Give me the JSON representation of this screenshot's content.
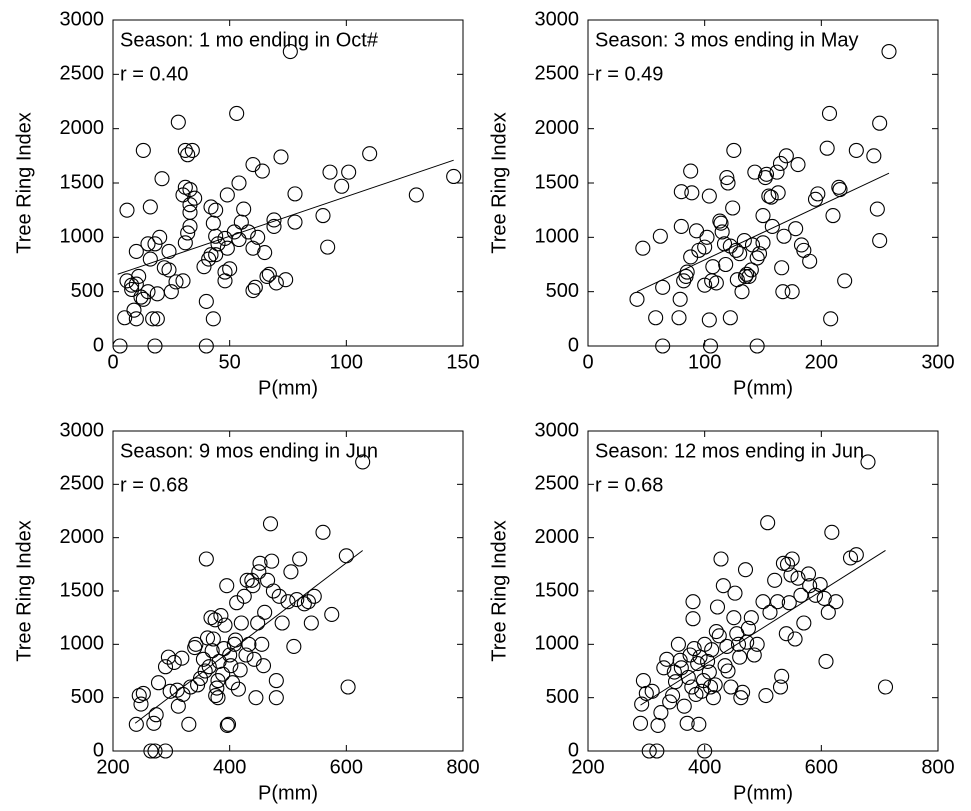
{
  "chart_data": [
    {
      "type": "scatter",
      "color": "#000000",
      "annotations": [
        "Season: 1 mo ending in Oct#",
        "r = 0.40"
      ],
      "xlabel": "P(mm)",
      "ylabel": "Tree Ring Index",
      "xlim": [
        0,
        150
      ],
      "ylim": [
        0,
        3000
      ],
      "xticks": [
        0,
        50,
        100,
        150
      ],
      "yticks": [
        0,
        500,
        1000,
        1500,
        2000,
        2500,
        3000
      ],
      "x": [
        3,
        18,
        40,
        5,
        10,
        17,
        19,
        43,
        9,
        13,
        12,
        15,
        8,
        8,
        10,
        6,
        11,
        19,
        25,
        27,
        30,
        22,
        24,
        16,
        10,
        18,
        15,
        20,
        24,
        31,
        32,
        33,
        33,
        33,
        35,
        30,
        33,
        31,
        31,
        32,
        34,
        28,
        13,
        6,
        16,
        21,
        39,
        41,
        42,
        44,
        44,
        43,
        45,
        44,
        42,
        48,
        48,
        50,
        49,
        49,
        48,
        40,
        52,
        54,
        55,
        54,
        56,
        58,
        60,
        60,
        61,
        62,
        60,
        64,
        65,
        66,
        67,
        69,
        69,
        70,
        72,
        74,
        78,
        78,
        92,
        90,
        93,
        98,
        101,
        110,
        130,
        146,
        76,
        53
      ],
      "values": [
        0,
        0,
        0,
        260,
        250,
        250,
        250,
        250,
        330,
        430,
        450,
        500,
        520,
        560,
        570,
        600,
        640,
        480,
        500,
        590,
        600,
        720,
        700,
        800,
        870,
        940,
        940,
        1000,
        870,
        950,
        1040,
        1100,
        1230,
        1300,
        1360,
        1390,
        1440,
        1460,
        1800,
        1760,
        1800,
        2060,
        1800,
        1250,
        1280,
        1540,
        730,
        800,
        840,
        840,
        1010,
        1130,
        940,
        1250,
        1280,
        600,
        680,
        710,
        900,
        1390,
        990,
        410,
        1050,
        980,
        1140,
        1500,
        1260,
        1050,
        900,
        510,
        540,
        1000,
        1670,
        1610,
        860,
        640,
        660,
        1100,
        1160,
        580,
        1740,
        610,
        1140,
        1400,
        910,
        1200,
        1600,
        1470,
        1600,
        1770,
        1390,
        1560,
        2710,
        2140
      ],
      "fit": {
        "x": [
          2,
          146
        ],
        "y": [
          660,
          1710
        ]
      }
    },
    {
      "type": "scatter",
      "color": "#000000",
      "annotations": [
        "Season: 3 mos ending in May",
        "r = 0.49"
      ],
      "xlabel": "P(mm)",
      "ylabel": "Tree Ring Index",
      "xlim": [
        0,
        300
      ],
      "ylim": [
        0,
        3000
      ],
      "xticks": [
        0,
        100,
        200,
        300
      ],
      "yticks": [
        0,
        500,
        1000,
        1500,
        2000,
        2500,
        3000
      ],
      "x": [
        42,
        47,
        58,
        62,
        64,
        64,
        105,
        145,
        78,
        79,
        82,
        84,
        85,
        88,
        80,
        80,
        89,
        88,
        93,
        95,
        100,
        100,
        102,
        104,
        106,
        104,
        107,
        110,
        113,
        114,
        115,
        117,
        118,
        119,
        120,
        122,
        124,
        125,
        127,
        128,
        130,
        132,
        134,
        135,
        136,
        138,
        140,
        141,
        143,
        145,
        147,
        150,
        150,
        152,
        153,
        155,
        157,
        158,
        162,
        163,
        165,
        166,
        167,
        168,
        170,
        175,
        178,
        180,
        183,
        185,
        190,
        195,
        197,
        205,
        207,
        208,
        210,
        215,
        216,
        220,
        230,
        245,
        248,
        250,
        250,
        258,
        122
      ],
      "values": [
        430,
        900,
        260,
        1010,
        540,
        0,
        0,
        0,
        260,
        430,
        600,
        640,
        680,
        820,
        1100,
        1420,
        1410,
        1610,
        1060,
        880,
        560,
        910,
        1000,
        1380,
        600,
        240,
        730,
        580,
        1150,
        1130,
        1050,
        940,
        750,
        1550,
        1500,
        920,
        1270,
        1800,
        880,
        610,
        850,
        500,
        970,
        640,
        660,
        640,
        700,
        930,
        1600,
        810,
        850,
        1200,
        950,
        1550,
        1580,
        1380,
        1370,
        1100,
        1600,
        1410,
        1680,
        720,
        500,
        1010,
        1750,
        500,
        1080,
        1670,
        930,
        880,
        780,
        1350,
        1400,
        1820,
        2140,
        250,
        1200,
        1460,
        1440,
        600,
        1800,
        1750,
        1260,
        970,
        2050,
        2710,
        260
      ],
      "fit": {
        "x": [
          42,
          258
        ],
        "y": [
          500,
          1590
        ]
      }
    },
    {
      "type": "scatter",
      "color": "#000000",
      "annotations": [
        "Season: 9 mos ending in Jun",
        "r = 0.68"
      ],
      "xlabel": "P(mm)",
      "ylabel": "Tree Ring Index",
      "xlim": [
        200,
        800
      ],
      "ylim": [
        0,
        3000
      ],
      "xticks": [
        200,
        400,
        600,
        800
      ],
      "yticks": [
        0,
        500,
        1000,
        1500,
        2000,
        2500,
        3000
      ],
      "x": [
        240,
        245,
        248,
        252,
        265,
        272,
        290,
        270,
        274,
        278,
        290,
        295,
        298,
        305,
        310,
        312,
        318,
        320,
        330,
        333,
        340,
        342,
        345,
        350,
        355,
        358,
        360,
        362,
        365,
        368,
        370,
        372,
        375,
        376,
        378,
        380,
        382,
        385,
        388,
        390,
        392,
        395,
        396,
        398,
        400,
        402,
        405,
        408,
        410,
        412,
        415,
        418,
        420,
        425,
        428,
        430,
        433,
        438,
        440,
        442,
        445,
        448,
        450,
        452,
        455,
        458,
        460,
        465,
        470,
        472,
        475,
        480,
        485,
        490,
        500,
        505,
        510,
        515,
        520,
        528,
        535,
        540,
        545,
        560,
        575,
        600,
        603,
        628,
        480,
        380
      ],
      "values": [
        250,
        520,
        440,
        540,
        0,
        0,
        0,
        260,
        340,
        640,
        790,
        880,
        560,
        830,
        570,
        420,
        870,
        530,
        250,
        600,
        970,
        1000,
        620,
        680,
        860,
        750,
        1800,
        1060,
        790,
        1250,
        940,
        1050,
        1230,
        520,
        590,
        660,
        840,
        1270,
        720,
        960,
        1180,
        1550,
        240,
        250,
        900,
        800,
        640,
        1000,
        1040,
        1390,
        580,
        760,
        1200,
        1450,
        900,
        1600,
        1000,
        1600,
        1550,
        860,
        500,
        1200,
        1680,
        1760,
        1000,
        800,
        1300,
        1600,
        2130,
        1780,
        1500,
        660,
        1450,
        1200,
        1400,
        1680,
        980,
        1420,
        1800,
        1380,
        1400,
        1200,
        1450,
        2050,
        1280,
        1830,
        600,
        2710,
        500,
        500
      ],
      "fit": {
        "x": [
          238,
          628
        ],
        "y": [
          260,
          1880
        ]
      }
    },
    {
      "type": "scatter",
      "color": "#000000",
      "annotations": [
        "Season: 12 mos ending in Jun",
        "r = 0.68"
      ],
      "xlabel": "P(mm)",
      "ylabel": "Tree Ring Index",
      "xlim": [
        200,
        800
      ],
      "ylim": [
        0,
        3000
      ],
      "xticks": [
        200,
        400,
        600,
        800
      ],
      "yticks": [
        0,
        500,
        1000,
        1500,
        2000,
        2500,
        3000
      ],
      "x": [
        290,
        292,
        295,
        300,
        305,
        318,
        400,
        310,
        320,
        325,
        330,
        335,
        340,
        345,
        350,
        355,
        358,
        360,
        365,
        370,
        372,
        375,
        378,
        380,
        382,
        385,
        388,
        390,
        392,
        395,
        398,
        400,
        405,
        408,
        410,
        412,
        415,
        418,
        420,
        422,
        425,
        428,
        432,
        435,
        438,
        440,
        445,
        450,
        452,
        455,
        458,
        460,
        462,
        465,
        470,
        472,
        475,
        480,
        485,
        490,
        500,
        505,
        508,
        512,
        520,
        525,
        530,
        532,
        535,
        540,
        542,
        545,
        548,
        550,
        555,
        560,
        565,
        570,
        578,
        580,
        590,
        598,
        605,
        608,
        612,
        618,
        625,
        650,
        660,
        680,
        710,
        348,
        380
      ],
      "values": [
        260,
        440,
        660,
        540,
        0,
        0,
        0,
        560,
        240,
        360,
        780,
        860,
        460,
        520,
        650,
        1000,
        850,
        780,
        420,
        260,
        690,
        900,
        600,
        1240,
        960,
        530,
        820,
        250,
        880,
        560,
        660,
        1000,
        840,
        740,
        600,
        950,
        500,
        620,
        1120,
        1350,
        1080,
        1800,
        1550,
        800,
        980,
        750,
        600,
        1250,
        1480,
        1100,
        1000,
        880,
        500,
        550,
        1700,
        1020,
        1150,
        1250,
        900,
        1000,
        1400,
        520,
        2140,
        1300,
        1600,
        1400,
        600,
        700,
        1760,
        1100,
        1750,
        1390,
        1650,
        1800,
        1050,
        1620,
        1460,
        1200,
        1660,
        1550,
        1460,
        1560,
        1430,
        840,
        1300,
        2050,
        1400,
        1810,
        1840,
        2710,
        600,
        740,
        1400
      ],
      "fit": {
        "x": [
          290,
          710
        ],
        "y": [
          430,
          1880
        ]
      }
    }
  ]
}
